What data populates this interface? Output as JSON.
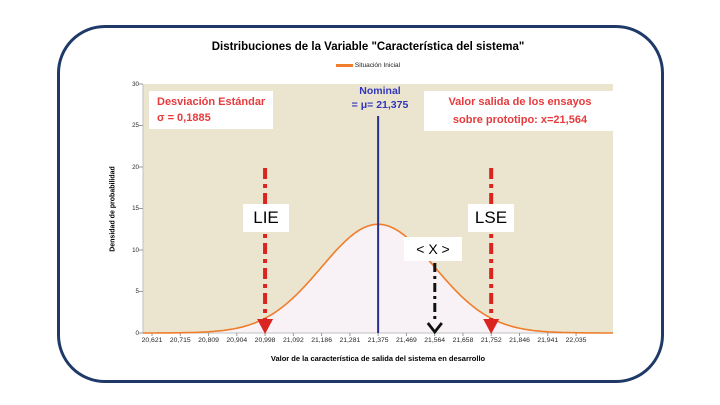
{
  "chart_data": {
    "type": "area",
    "title": "Distribuciones de la Variable \"Característica del sistema\"",
    "legend_label": "Situación Inicial",
    "xlabel": "Valor de la característica de salida del sistema en desarrollo",
    "ylabel": "Densidad de probabilidad",
    "x_ticks": [
      "20,621",
      "20,715",
      "20,809",
      "20,904",
      "20,998",
      "21,092",
      "21,186",
      "21,281",
      "21,375",
      "21,469",
      "21,564",
      "21,658",
      "21,752",
      "21,846",
      "21,941",
      "22,035"
    ],
    "y_ticks": [
      0,
      5,
      10,
      15,
      20,
      25,
      30
    ],
    "ylim": [
      0,
      30
    ],
    "xlim": [
      20.621,
      22.035
    ],
    "grid": false,
    "legend_position": "top-center",
    "distribution": {
      "shape": "gaussian",
      "mean": 21.375,
      "sigma": 0.1885,
      "peak_density": 13.1
    },
    "markers": {
      "nominal": {
        "x": 21.375
      },
      "lie": {
        "x": 20.998
      },
      "lse": {
        "x": 21.752
      },
      "prototype_output": {
        "x": 21.564
      }
    }
  },
  "annotations": {
    "std_line1": "Desviación Estándar",
    "std_line2": "σ = 0,1885",
    "nominal_line1": "Nominal",
    "nominal_line2": "= μ= 21,375",
    "output_line1": "Valor salida de los ensayos",
    "output_line2": "sobre prototipo: x=21,564",
    "lie": "LIE",
    "lse": "LSE",
    "x_marker": "< X >"
  },
  "colors": {
    "frame_border": "#1f3a68",
    "plot_background": "#ebe4cf",
    "curve": "#ef7d2c",
    "curve_fill": "#f8f1f6",
    "axis_gray": "#c2c2c2",
    "tick_gray": "#9a9a9a",
    "red_text": "#e63a3d",
    "red_arrow": "#da2420",
    "blue_text": "#3136bd",
    "blue_line": "#28308f",
    "black_arrow": "#111111"
  }
}
